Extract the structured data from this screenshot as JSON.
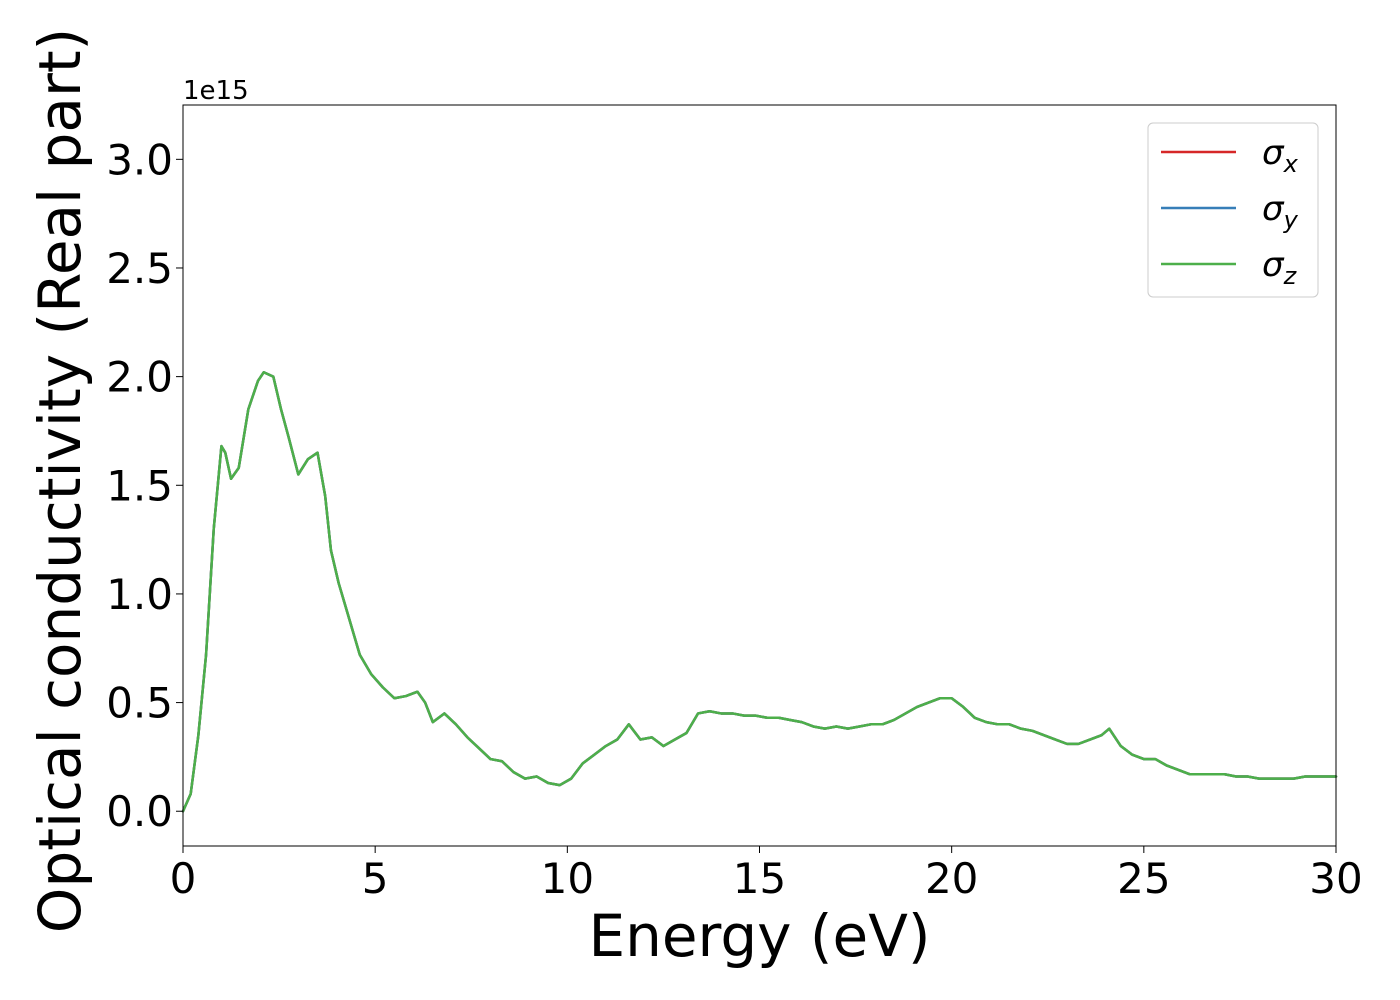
{
  "chart_data": {
    "type": "line",
    "xlabel": "Energy (eV)",
    "ylabel": "Optical conductivity (Real part)",
    "offset_label": "1e15",
    "y_scale_factor": 1000000000000000.0,
    "xlim": [
      0,
      30
    ],
    "ylim": [
      -0.16,
      3.25
    ],
    "x_ticks": [
      0,
      5,
      10,
      15,
      20,
      25,
      30
    ],
    "x_tick_labels": [
      "0",
      "5",
      "10",
      "15",
      "20",
      "25",
      "30"
    ],
    "y_ticks": [
      0.0,
      0.5,
      1.0,
      1.5,
      2.0,
      2.5,
      3.0
    ],
    "y_tick_labels": [
      "0.0",
      "0.5",
      "1.0",
      "1.5",
      "2.0",
      "2.5",
      "3.0"
    ],
    "grid": false,
    "legend_position": "top-right",
    "x": [
      0,
      0.2,
      0.4,
      0.6,
      0.8,
      1.0,
      1.1,
      1.25,
      1.45,
      1.7,
      1.95,
      2.1,
      2.35,
      2.55,
      2.75,
      3.0,
      3.25,
      3.5,
      3.7,
      3.85,
      4.05,
      4.3,
      4.6,
      4.9,
      5.2,
      5.5,
      5.8,
      6.1,
      6.3,
      6.5,
      6.8,
      7.1,
      7.4,
      7.7,
      8.0,
      8.3,
      8.6,
      8.9,
      9.2,
      9.5,
      9.8,
      10.1,
      10.4,
      10.7,
      11.0,
      11.3,
      11.6,
      11.9,
      12.2,
      12.5,
      12.8,
      13.1,
      13.4,
      13.7,
      14.0,
      14.3,
      14.6,
      14.9,
      15.2,
      15.5,
      15.8,
      16.1,
      16.4,
      16.7,
      17.0,
      17.3,
      17.6,
      17.9,
      18.2,
      18.5,
      18.8,
      19.1,
      19.4,
      19.7,
      20.0,
      20.3,
      20.6,
      20.9,
      21.2,
      21.5,
      21.8,
      22.1,
      22.4,
      22.7,
      23.0,
      23.3,
      23.6,
      23.9,
      24.1,
      24.4,
      24.7,
      25.0,
      25.3,
      25.6,
      25.9,
      26.2,
      26.5,
      26.8,
      27.1,
      27.4,
      27.7,
      28.0,
      28.3,
      28.6,
      28.9,
      29.2,
      29.5,
      29.8,
      30.0
    ],
    "series": [
      {
        "name": "σx",
        "color": "#d62728",
        "values": [
          0.0,
          0.08,
          0.35,
          0.72,
          1.3,
          1.68,
          1.65,
          1.53,
          1.58,
          1.85,
          1.98,
          2.02,
          2.0,
          1.85,
          1.72,
          1.55,
          1.62,
          1.65,
          1.45,
          1.2,
          1.05,
          0.9,
          0.72,
          0.63,
          0.57,
          0.52,
          0.53,
          0.55,
          0.5,
          0.41,
          0.45,
          0.4,
          0.34,
          0.29,
          0.24,
          0.23,
          0.18,
          0.15,
          0.16,
          0.13,
          0.12,
          0.15,
          0.22,
          0.26,
          0.3,
          0.33,
          0.4,
          0.33,
          0.34,
          0.3,
          0.33,
          0.36,
          0.45,
          0.46,
          0.45,
          0.45,
          0.44,
          0.44,
          0.43,
          0.43,
          0.42,
          0.41,
          0.39,
          0.38,
          0.39,
          0.38,
          0.39,
          0.4,
          0.4,
          0.42,
          0.45,
          0.48,
          0.5,
          0.52,
          0.52,
          0.48,
          0.43,
          0.41,
          0.4,
          0.4,
          0.38,
          0.37,
          0.35,
          0.33,
          0.31,
          0.31,
          0.33,
          0.35,
          0.38,
          0.3,
          0.26,
          0.24,
          0.24,
          0.21,
          0.19,
          0.17,
          0.17,
          0.17,
          0.17,
          0.16,
          0.16,
          0.15,
          0.15,
          0.15,
          0.15,
          0.16,
          0.16,
          0.16,
          0.16
        ]
      },
      {
        "name": "σy",
        "color": "#377eb8",
        "values": [
          0.0,
          0.08,
          0.35,
          0.72,
          1.3,
          1.68,
          1.65,
          1.53,
          1.58,
          1.85,
          1.98,
          2.02,
          2.0,
          1.85,
          1.72,
          1.55,
          1.62,
          1.65,
          1.45,
          1.2,
          1.05,
          0.9,
          0.72,
          0.63,
          0.57,
          0.52,
          0.53,
          0.55,
          0.5,
          0.41,
          0.45,
          0.4,
          0.34,
          0.29,
          0.24,
          0.23,
          0.18,
          0.15,
          0.16,
          0.13,
          0.12,
          0.15,
          0.22,
          0.26,
          0.3,
          0.33,
          0.4,
          0.33,
          0.34,
          0.3,
          0.33,
          0.36,
          0.45,
          0.46,
          0.45,
          0.45,
          0.44,
          0.44,
          0.43,
          0.43,
          0.42,
          0.41,
          0.39,
          0.38,
          0.39,
          0.38,
          0.39,
          0.4,
          0.4,
          0.42,
          0.45,
          0.48,
          0.5,
          0.52,
          0.52,
          0.48,
          0.43,
          0.41,
          0.4,
          0.4,
          0.38,
          0.37,
          0.35,
          0.33,
          0.31,
          0.31,
          0.33,
          0.35,
          0.38,
          0.3,
          0.26,
          0.24,
          0.24,
          0.21,
          0.19,
          0.17,
          0.17,
          0.17,
          0.17,
          0.16,
          0.16,
          0.15,
          0.15,
          0.15,
          0.15,
          0.16,
          0.16,
          0.16,
          0.16
        ]
      },
      {
        "name": "σz",
        "color": "#4daf4a",
        "values": [
          0.0,
          0.08,
          0.35,
          0.72,
          1.3,
          1.68,
          1.65,
          1.53,
          1.58,
          1.85,
          1.98,
          2.02,
          2.0,
          1.85,
          1.72,
          1.55,
          1.62,
          1.65,
          1.45,
          1.2,
          1.05,
          0.9,
          0.72,
          0.63,
          0.57,
          0.52,
          0.53,
          0.55,
          0.5,
          0.41,
          0.45,
          0.4,
          0.34,
          0.29,
          0.24,
          0.23,
          0.18,
          0.15,
          0.16,
          0.13,
          0.12,
          0.15,
          0.22,
          0.26,
          0.3,
          0.33,
          0.4,
          0.33,
          0.34,
          0.3,
          0.33,
          0.36,
          0.45,
          0.46,
          0.45,
          0.45,
          0.44,
          0.44,
          0.43,
          0.43,
          0.42,
          0.41,
          0.39,
          0.38,
          0.39,
          0.38,
          0.39,
          0.4,
          0.4,
          0.42,
          0.45,
          0.48,
          0.5,
          0.52,
          0.52,
          0.48,
          0.43,
          0.41,
          0.4,
          0.4,
          0.38,
          0.37,
          0.35,
          0.33,
          0.31,
          0.31,
          0.33,
          0.35,
          0.38,
          0.3,
          0.26,
          0.24,
          0.24,
          0.21,
          0.19,
          0.17,
          0.17,
          0.17,
          0.17,
          0.16,
          0.16,
          0.15,
          0.15,
          0.15,
          0.15,
          0.16,
          0.16,
          0.16,
          0.16
        ]
      }
    ]
  }
}
